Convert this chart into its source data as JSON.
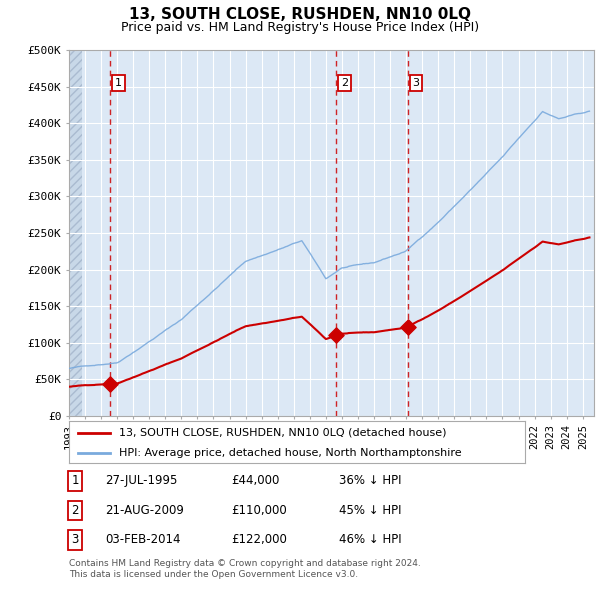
{
  "title": "13, SOUTH CLOSE, RUSHDEN, NN10 0LQ",
  "subtitle": "Price paid vs. HM Land Registry's House Price Index (HPI)",
  "legend_line1": "13, SOUTH CLOSE, RUSHDEN, NN10 0LQ (detached house)",
  "legend_line2": "HPI: Average price, detached house, North Northamptonshire",
  "footer1": "Contains HM Land Registry data © Crown copyright and database right 2024.",
  "footer2": "This data is licensed under the Open Government Licence v3.0.",
  "transactions": [
    {
      "num": 1,
      "date": "27-JUL-1995",
      "price": "£44,000",
      "pct": "36% ↓ HPI",
      "x_year": 1995.57
    },
    {
      "num": 2,
      "date": "21-AUG-2009",
      "price": "£110,000",
      "pct": "45% ↓ HPI",
      "x_year": 2009.63
    },
    {
      "num": 3,
      "date": "03-FEB-2014",
      "price": "£122,000",
      "pct": "46% ↓ HPI",
      "x_year": 2014.09
    }
  ],
  "transaction_values": [
    44000,
    110000,
    122000
  ],
  "transaction_years": [
    1995.57,
    2009.63,
    2014.09
  ],
  "hpi_color": "#7aaadd",
  "price_color": "#cc0000",
  "dashed_color": "#cc0000",
  "ylim": [
    0,
    500000
  ],
  "yticks": [
    0,
    50000,
    100000,
    150000,
    200000,
    250000,
    300000,
    350000,
    400000,
    450000,
    500000
  ],
  "xlim_start": 1993.0,
  "xlim_end": 2025.7,
  "bg_color": "#dce8f5",
  "grid_color": "#ffffff",
  "hatch_color": "#c8d8e8"
}
